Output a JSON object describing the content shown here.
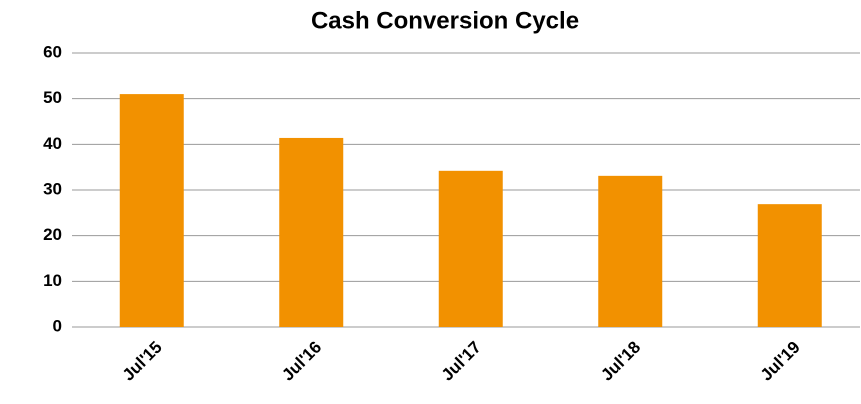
{
  "chart_data": {
    "type": "bar",
    "title": "Cash Conversion Cycle",
    "categories": [
      "Jul'15",
      "Jul'16",
      "Jul'17",
      "Jul'18",
      "Jul'19"
    ],
    "values": [
      51,
      41.4,
      34.2,
      33.1,
      26.9
    ],
    "color": "#f29100",
    "ylim": [
      0,
      60
    ],
    "yticks": [
      0,
      10,
      20,
      30,
      40,
      50,
      60
    ],
    "grid": true
  }
}
